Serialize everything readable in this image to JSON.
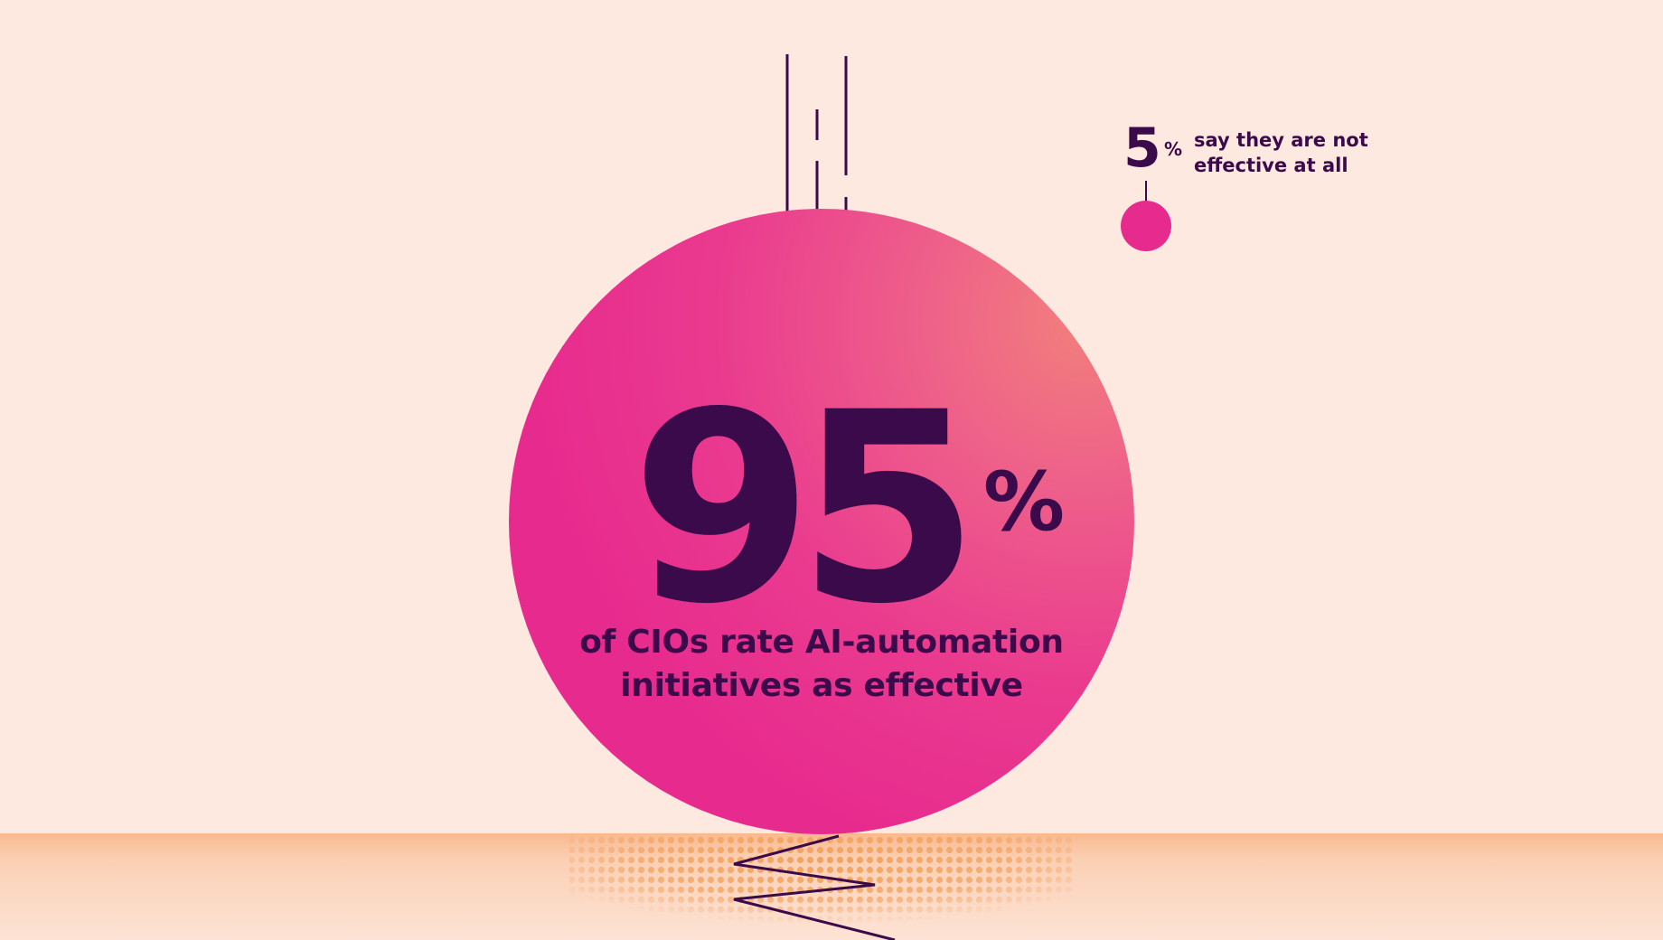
{
  "main_stat": {
    "number": "95",
    "percent": "%",
    "caption_lines": [
      "of CIOs rate AI-automation",
      "initiatives as effective"
    ]
  },
  "side_stat": {
    "number": "5",
    "percent": "%",
    "label_lines": [
      "say they are not",
      "effective at all"
    ]
  },
  "colors": {
    "background": "#fde9e0",
    "accent_pink": "#e72b8e",
    "accent_coral": "#f27f7c",
    "text_dark_purple": "#3b0a4a",
    "ground_orange": "#f8b98f",
    "dots_orange": "#f4a25e"
  }
}
